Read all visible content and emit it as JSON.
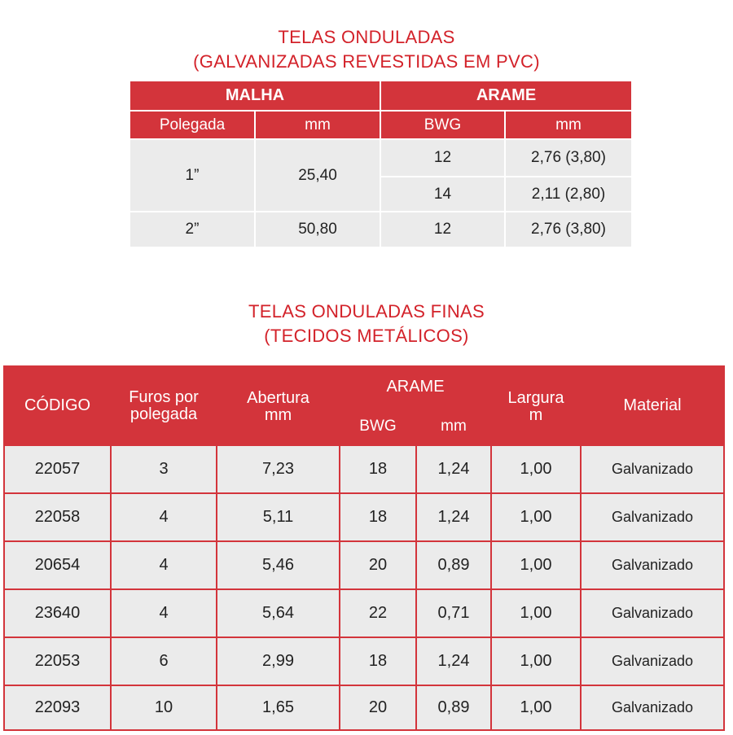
{
  "table1": {
    "title_line1": "TELAS ONDULADAS",
    "title_line2": "(GALVANIZADAS REVESTIDAS EM PVC)",
    "group_headers": [
      "MALHA",
      "ARAME"
    ],
    "sub_headers": [
      "Polegada",
      "mm",
      "BWG",
      "mm"
    ],
    "rows": [
      {
        "polegada": "1”",
        "mm": "25,40",
        "wires": [
          {
            "bwg": "12",
            "mm": "2,76 (3,80)"
          },
          {
            "bwg": "14",
            "mm": "2,11 (2,80)"
          }
        ]
      },
      {
        "polegada": "2”",
        "mm": "50,80",
        "wires": [
          {
            "bwg": "12",
            "mm": "2,76 (3,80)"
          }
        ]
      }
    ],
    "colors": {
      "header": "#d3343b",
      "title": "#d3222a",
      "body": "#ebebeb"
    }
  },
  "table2": {
    "title_line1": "TELAS ONDULADAS FINAS",
    "title_line2": "(TECIDOS METÁLICOS)",
    "headers": {
      "codigo": "CÓDIGO",
      "furos": "Furos por polegada",
      "abertura": "Abertura mm",
      "arame": "ARAME",
      "bwg": "BWG",
      "mm": "mm",
      "largura": "Largura m",
      "material": "Material"
    },
    "rows": [
      [
        "22057",
        "3",
        "7,23",
        "18",
        "1,24",
        "1,00",
        "Galvanizado"
      ],
      [
        "22058",
        "4",
        "5,11",
        "18",
        "1,24",
        "1,00",
        "Galvanizado"
      ],
      [
        "20654",
        "4",
        "5,46",
        "20",
        "0,89",
        "1,00",
        "Galvanizado"
      ],
      [
        "23640",
        "4",
        "5,64",
        "22",
        "0,71",
        "1,00",
        "Galvanizado"
      ],
      [
        "22053",
        "6",
        "2,99",
        "18",
        "1,24",
        "1,00",
        "Galvanizado"
      ],
      [
        "22093",
        "10",
        "1,65",
        "20",
        "0,89",
        "1,00",
        "Galvanizado"
      ]
    ]
  }
}
